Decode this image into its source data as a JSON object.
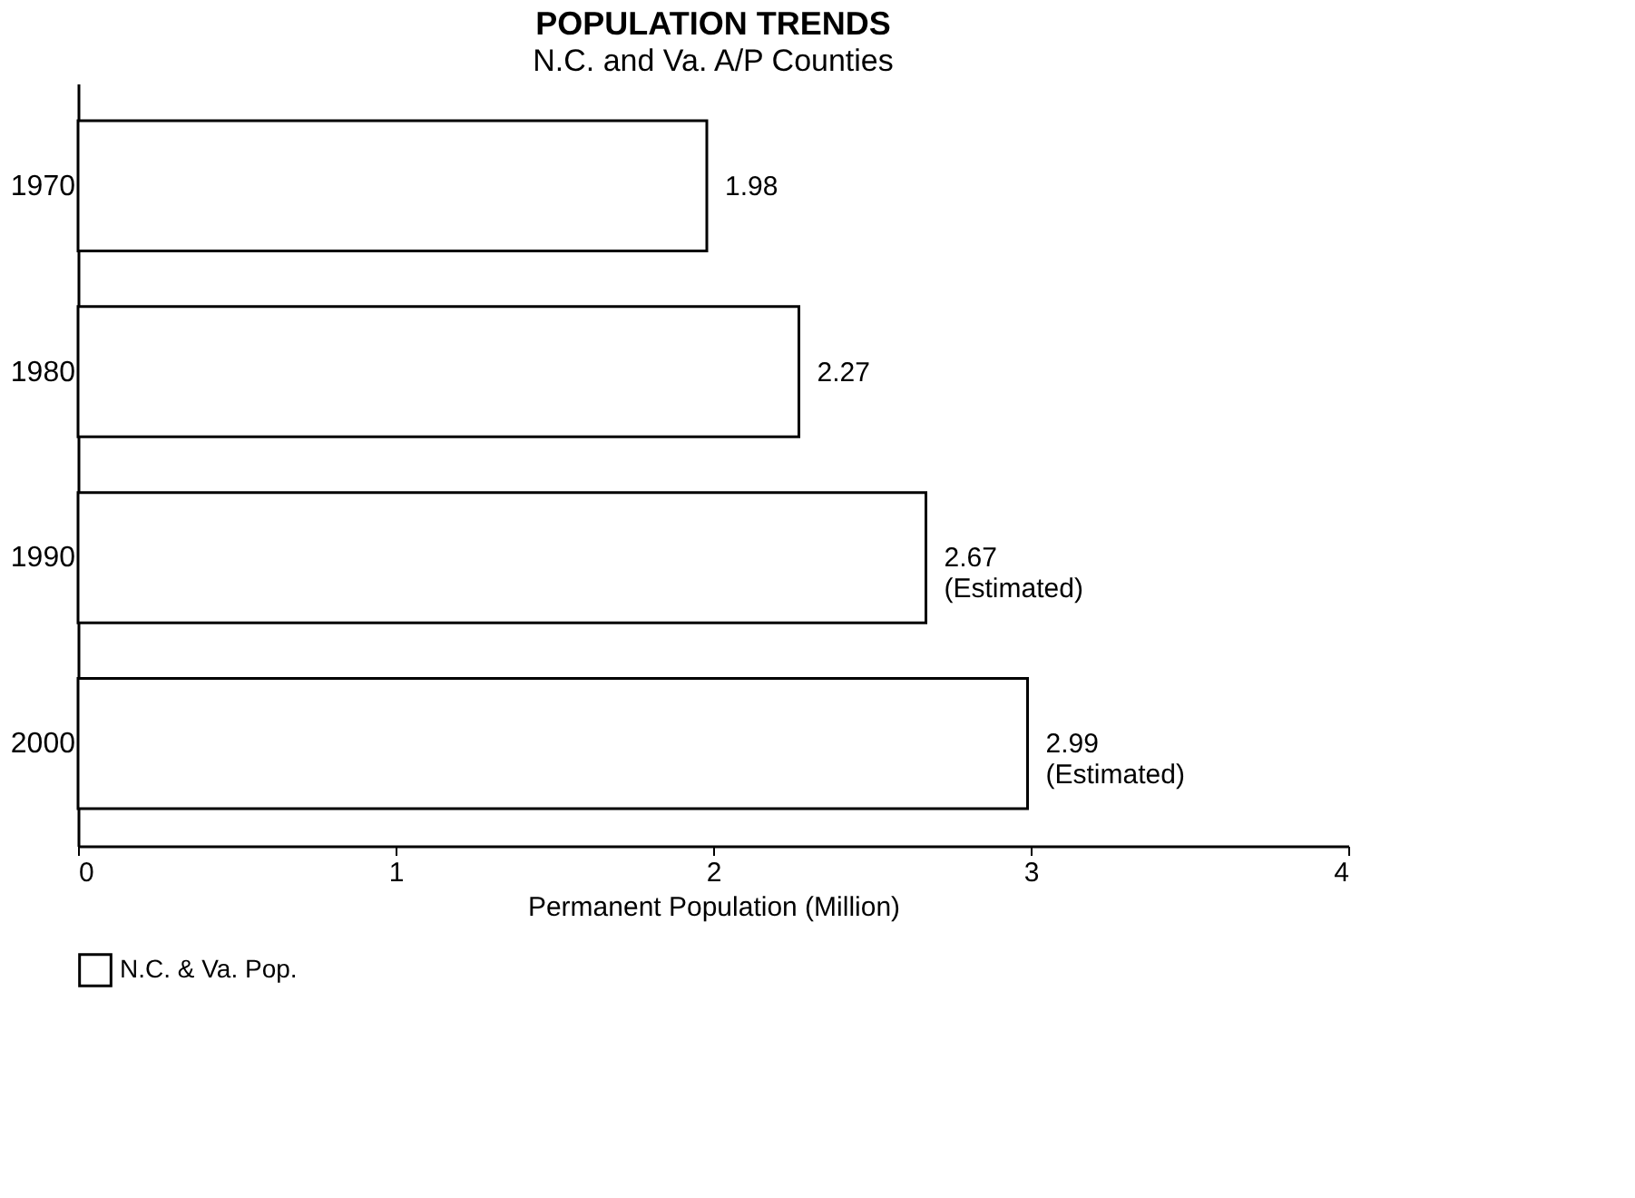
{
  "chart_data": {
    "type": "bar",
    "orientation": "horizontal",
    "title": "POPULATION TRENDS",
    "subtitle": "N.C. and Va. A/P Counties",
    "categories": [
      "1970",
      "1980",
      "1990",
      "2000"
    ],
    "series": [
      {
        "name": "N.C. & Va. Pop.",
        "color": "#ffffff",
        "values": [
          1.98,
          2.27,
          2.67,
          2.99
        ]
      }
    ],
    "value_labels": [
      "1.98",
      "2.27",
      "2.67\n(Estimated)",
      "2.99\n(Estimated)"
    ],
    "xlabel": "Permanent Population (Million)",
    "xlim": [
      0,
      4
    ],
    "xticks": [
      0,
      1,
      2,
      3,
      4
    ],
    "grid": false,
    "legend": "bottom"
  }
}
